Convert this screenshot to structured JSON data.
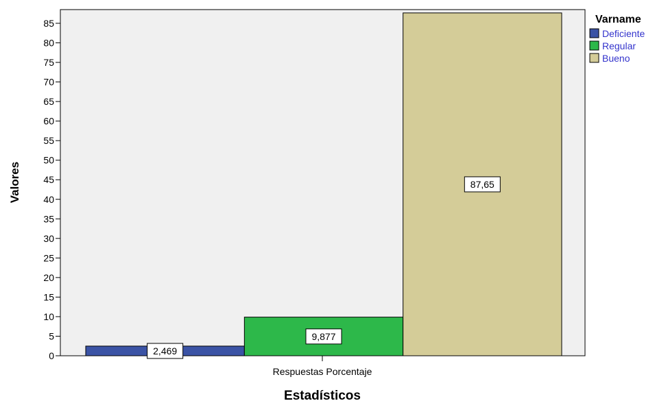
{
  "chart_data": {
    "type": "bar",
    "categories": [
      "Respuestas Porcentaje"
    ],
    "series": [
      {
        "name": "Deficiente",
        "values": [
          2.469
        ],
        "label": "2,469",
        "color": "#3b53a5"
      },
      {
        "name": "Regular",
        "values": [
          9.877
        ],
        "label": "9,877",
        "color": "#2db84a"
      },
      {
        "name": "Bueno",
        "values": [
          87.65
        ],
        "label": "87,65",
        "color": "#d4cc98"
      }
    ],
    "xlabel": "Estadísticos",
    "ylabel": "Valores",
    "ylim": [
      0,
      88.5
    ],
    "yticks": [
      0,
      5,
      10,
      15,
      20,
      25,
      30,
      35,
      40,
      45,
      50,
      55,
      60,
      65,
      70,
      75,
      80,
      85
    ],
    "legend": {
      "title": "Varname",
      "position": "top-right"
    },
    "grid": false,
    "plot_background": "#f0f0f0"
  }
}
